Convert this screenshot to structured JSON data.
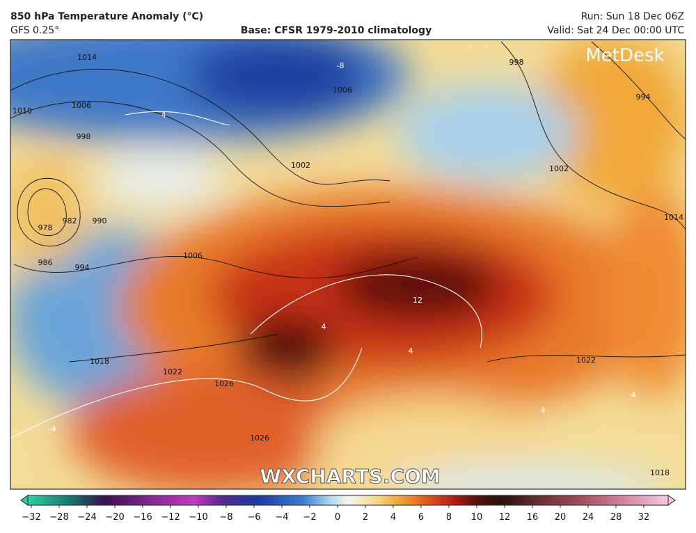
{
  "header": {
    "title": "850 hPa Temperature Anomaly (°C)",
    "model": "GFS 0.25°",
    "base": "Base: CFSR 1979-2010 climatology",
    "run": "Run: Sun 18 Dec 06Z",
    "valid": "Valid: Sat 24 Dec 00:00 UTC"
  },
  "map": {
    "logo": "MetDesk",
    "watermark": "WXCHARTS.COM",
    "pressure_labels": [
      "1014",
      "1010",
      "1006",
      "998",
      "978",
      "982",
      "990",
      "986",
      "994",
      "1006",
      "1002",
      "1006",
      "1018",
      "1022",
      "1026",
      "1026",
      "998",
      "994",
      "1002",
      "1014",
      "1022",
      "1018"
    ],
    "anomaly_labels": [
      "-8",
      "12",
      "4",
      "4",
      "4",
      "-4",
      "4",
      "4"
    ]
  },
  "colorbar": {
    "ticks": [
      "−32",
      "−28",
      "−24",
      "−20",
      "−16",
      "−12",
      "−10",
      "−8",
      "−6",
      "−4",
      "−2",
      "0",
      "2",
      "4",
      "6",
      "8",
      "10",
      "12",
      "16",
      "20",
      "24",
      "28",
      "32"
    ]
  }
}
